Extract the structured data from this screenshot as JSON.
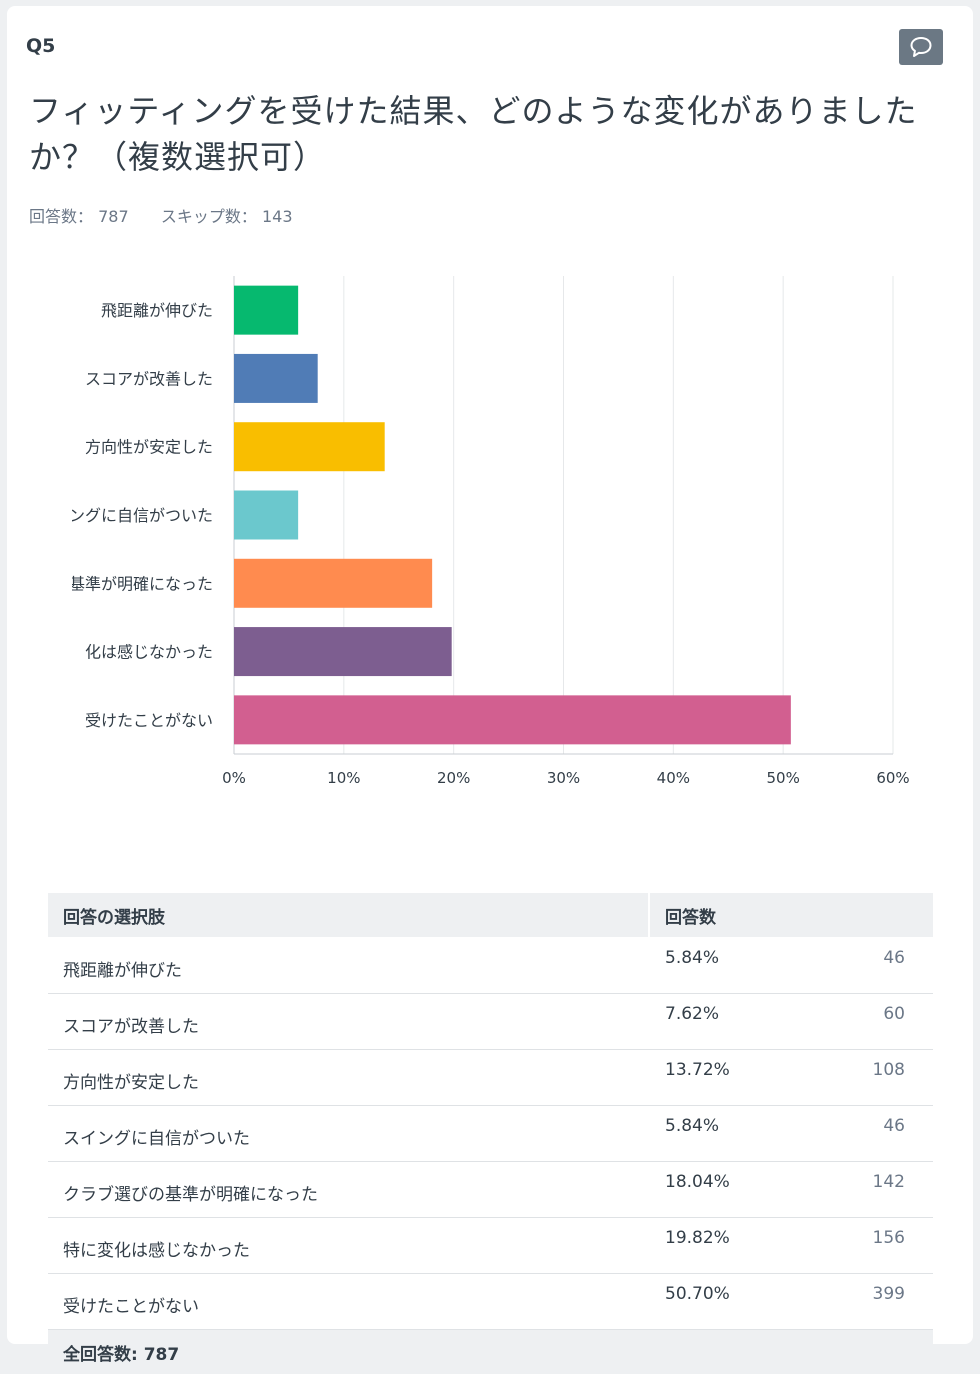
{
  "question": {
    "number": "Q5",
    "title": "フィッティングを受けた結果、どのような変化がありましたか？（複数選択可）"
  },
  "stats": {
    "answered_label": "回答数：",
    "answered_value": "787",
    "skipped_label": "スキップ数：",
    "skipped_value": "143"
  },
  "colors": [
    "#06b96f",
    "#507cb6",
    "#f9be00",
    "#6bc8cd",
    "#ff8b4f",
    "#7d5e90",
    "#d25f90"
  ],
  "chart_data": {
    "type": "bar",
    "orientation": "horizontal",
    "categories": [
      "飛距離が伸びた",
      "スコアが改善した",
      "方向性が安定した",
      "スイングに自信がついた",
      "クラブ選びの基準が明確になった",
      "特に変化は感じなかった",
      "受けたことがない"
    ],
    "axis_labels": [
      "飛距離が伸びた",
      "スコアが改善した",
      "方向性が安定した",
      "ングに自信がついた",
      "基準が明確になった",
      "化は感じなかった",
      "受けたことがない"
    ],
    "values": [
      5.84,
      7.62,
      13.72,
      5.84,
      18.04,
      19.82,
      50.7
    ],
    "xlim": [
      0,
      60
    ],
    "xticks": [
      "0%",
      "10%",
      "20%",
      "30%",
      "40%",
      "50%",
      "60%"
    ],
    "grid": true
  },
  "table": {
    "header_choice": "回答の選択肢",
    "header_responses": "回答数",
    "rows": [
      {
        "label": "飛距離が伸びた",
        "pct": "5.84%",
        "count": "46"
      },
      {
        "label": "スコアが改善した",
        "pct": "7.62%",
        "count": "60"
      },
      {
        "label": "方向性が安定した",
        "pct": "13.72%",
        "count": "108"
      },
      {
        "label": "スイングに自信がついた",
        "pct": "5.84%",
        "count": "46"
      },
      {
        "label": "クラブ選びの基準が明確になった",
        "pct": "18.04%",
        "count": "142"
      },
      {
        "label": "特に変化は感じなかった",
        "pct": "19.82%",
        "count": "156"
      },
      {
        "label": "受けたことがない",
        "pct": "50.70%",
        "count": "399"
      }
    ],
    "total": "全回答数: 787"
  }
}
